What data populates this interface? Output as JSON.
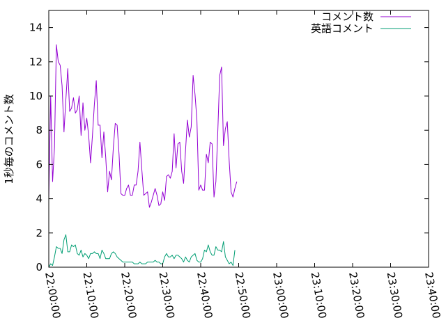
{
  "chart_data": {
    "type": "line",
    "ylabel": "1秒毎のコメント数",
    "xlabel": "",
    "ylim": [
      0,
      15
    ],
    "xlim": [
      "22:00:00",
      "23:40:00"
    ],
    "x_ticks": [
      "22:00:00",
      "22:10:00",
      "22:20:00",
      "22:30:00",
      "22:40:00",
      "22:50:00",
      "23:00:00",
      "23:10:00",
      "23:20:00",
      "23:30:00",
      "23:40:00"
    ],
    "y_ticks": [
      "0",
      "2",
      "4",
      "6",
      "8",
      "10",
      "12",
      "14"
    ],
    "grid": false,
    "legend_position": "top-right",
    "x_start": "22:00:00",
    "x_step": "00:00:30",
    "series": [
      {
        "name": "コメント数",
        "color": "#9400d3",
        "values": [
          4.0,
          10.0,
          5.0,
          7.0,
          13.0,
          12.0,
          11.8,
          10.6,
          7.9,
          9.8,
          11.6,
          9.1,
          9.3,
          9.9,
          9.0,
          9.2,
          10.0,
          7.7,
          9.6,
          8.0,
          8.7,
          7.7,
          6.1,
          7.7,
          9.5,
          10.9,
          8.3,
          8.3,
          6.4,
          7.9,
          6.4,
          4.4,
          5.6,
          5.1,
          7.0,
          8.4,
          8.3,
          6.6,
          4.3,
          4.2,
          4.2,
          4.6,
          4.8,
          4.2,
          4.2,
          4.8,
          4.8,
          5.6,
          7.3,
          5.7,
          4.2,
          4.3,
          4.4,
          3.5,
          3.8,
          4.2,
          4.6,
          4.2,
          3.6,
          3.7,
          4.4,
          3.9,
          5.3,
          5.4,
          5.2,
          5.6,
          7.8,
          5.8,
          7.2,
          7.3,
          5.6,
          4.9,
          6.8,
          8.6,
          7.6,
          8.2,
          11.2,
          10.1,
          8.6,
          4.5,
          4.8,
          4.5,
          4.5,
          6.6,
          6.1,
          7.3,
          7.2,
          4.1,
          5.0,
          7.9,
          11.2,
          11.7,
          7.1,
          8.1,
          8.5,
          6.2,
          4.4,
          4.1,
          4.6,
          5.0
        ]
      },
      {
        "name": "英語コメント",
        "color": "#009e73",
        "values": [
          0.0,
          0.2,
          0.1,
          0.6,
          1.2,
          1.1,
          1.1,
          0.8,
          1.6,
          1.9,
          0.9,
          0.9,
          1.3,
          1.2,
          1.3,
          0.8,
          0.7,
          1.0,
          0.6,
          0.8,
          0.7,
          0.5,
          0.8,
          0.8,
          0.9,
          0.8,
          0.8,
          0.5,
          1.0,
          0.8,
          0.5,
          0.5,
          0.5,
          0.8,
          0.9,
          0.8,
          0.6,
          0.5,
          0.4,
          0.3,
          0.3,
          0.3,
          0.3,
          0.3,
          0.3,
          0.2,
          0.2,
          0.2,
          0.3,
          0.2,
          0.2,
          0.2,
          0.3,
          0.3,
          0.3,
          0.3,
          0.4,
          0.3,
          0.3,
          0.2,
          0.2,
          0.6,
          0.8,
          0.6,
          0.6,
          0.7,
          0.5,
          0.7,
          0.7,
          0.6,
          0.5,
          0.3,
          0.6,
          0.4,
          0.3,
          0.6,
          0.7,
          0.8,
          0.4,
          0.3,
          0.3,
          0.5,
          1.0,
          0.9,
          1.3,
          0.9,
          0.7,
          0.7,
          1.2,
          1.0,
          1.0,
          0.9,
          1.5,
          0.6,
          0.4,
          0.2,
          0.3,
          0.1,
          1.0
        ]
      }
    ]
  }
}
